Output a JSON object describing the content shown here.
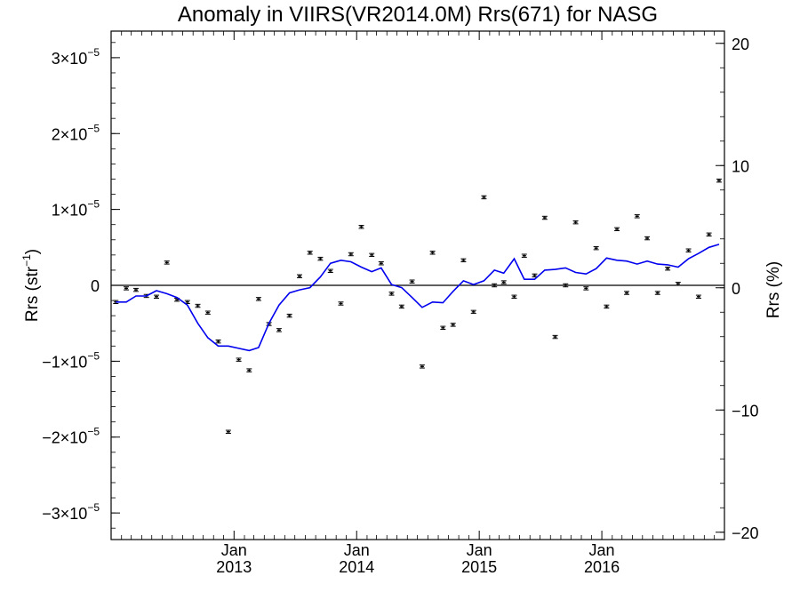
{
  "chart_data": {
    "type": "scatter",
    "title": "Anomaly in VIIRS(VR2014.0M) Rrs(671) for NASG",
    "ylabel_left": {
      "base": "Rrs (str",
      "sup": "−1",
      "close": ")"
    },
    "ylabel_right": "Rrs (%)",
    "xlim": [
      "2012-01-01",
      "2016-12-31"
    ],
    "ylim_left": [
      -3.35e-05,
      3.35e-05
    ],
    "ylim_right": [
      -20.6,
      21.0
    ],
    "left_ticks": [
      {
        "value": -3e-05,
        "mant": "−3×10",
        "exp": "−5"
      },
      {
        "value": -2e-05,
        "mant": "−2×10",
        "exp": "−5"
      },
      {
        "value": -1e-05,
        "mant": "−1×10",
        "exp": "−5"
      },
      {
        "value": 0,
        "mant": "0",
        "exp": ""
      },
      {
        "value": 1e-05,
        "mant": "1×10",
        "exp": "−5"
      },
      {
        "value": 2e-05,
        "mant": "2×10",
        "exp": "−5"
      },
      {
        "value": 3e-05,
        "mant": "3×10",
        "exp": "−5"
      }
    ],
    "right_ticks": [
      {
        "value": -20,
        "label": "−20"
      },
      {
        "value": -10,
        "label": "−10"
      },
      {
        "value": 0,
        "label": "0"
      },
      {
        "value": 10,
        "label": "10"
      },
      {
        "value": 20,
        "label": "20"
      }
    ],
    "x_ticks": [
      {
        "date": "2013-01-01",
        "month": "Jan",
        "year": "2013"
      },
      {
        "date": "2014-01-01",
        "month": "Jan",
        "year": "2014"
      },
      {
        "date": "2015-01-01",
        "month": "Jan",
        "year": "2015"
      },
      {
        "date": "2016-01-01",
        "month": "Jan",
        "year": "2016"
      }
    ],
    "zero_line": 0,
    "points": [
      {
        "x": "2012-01-15",
        "y": -2.2e-06
      },
      {
        "x": "2012-02-15",
        "y": -4e-07
      },
      {
        "x": "2012-03-15",
        "y": -6e-07
      },
      {
        "x": "2012-04-15",
        "y": -1.4e-06
      },
      {
        "x": "2012-05-15",
        "y": -1.5e-06
      },
      {
        "x": "2012-06-15",
        "y": 3e-06
      },
      {
        "x": "2012-07-15",
        "y": -1.9e-06
      },
      {
        "x": "2012-08-15",
        "y": -2.2e-06
      },
      {
        "x": "2012-09-15",
        "y": -2.7e-06
      },
      {
        "x": "2012-10-15",
        "y": -3.6e-06
      },
      {
        "x": "2012-11-15",
        "y": -7.4e-06
      },
      {
        "x": "2012-12-15",
        "y": -1.93e-05
      },
      {
        "x": "2013-01-15",
        "y": -9.8e-06
      },
      {
        "x": "2013-02-15",
        "y": -1.12e-05
      },
      {
        "x": "2013-03-15",
        "y": -1.8e-06
      },
      {
        "x": "2013-04-15",
        "y": -5.1e-06
      },
      {
        "x": "2013-05-15",
        "y": -5.9e-06
      },
      {
        "x": "2013-06-15",
        "y": -4e-06
      },
      {
        "x": "2013-07-15",
        "y": 1.2e-06
      },
      {
        "x": "2013-08-15",
        "y": 4.3e-06
      },
      {
        "x": "2013-09-15",
        "y": 3.5e-06
      },
      {
        "x": "2013-10-15",
        "y": 1.9e-06
      },
      {
        "x": "2013-11-15",
        "y": -2.4e-06
      },
      {
        "x": "2013-12-15",
        "y": 4.1e-06
      },
      {
        "x": "2014-01-15",
        "y": 7.7e-06
      },
      {
        "x": "2014-02-15",
        "y": 4e-06
      },
      {
        "x": "2014-03-15",
        "y": 2.9e-06
      },
      {
        "x": "2014-04-15",
        "y": -1.1e-06
      },
      {
        "x": "2014-05-15",
        "y": -2.8e-06
      },
      {
        "x": "2014-06-15",
        "y": 5e-07
      },
      {
        "x": "2014-07-15",
        "y": -1.07e-05
      },
      {
        "x": "2014-08-15",
        "y": 4.3e-06
      },
      {
        "x": "2014-09-15",
        "y": -5.6e-06
      },
      {
        "x": "2014-10-15",
        "y": -5.2e-06
      },
      {
        "x": "2014-11-15",
        "y": 3.3e-06
      },
      {
        "x": "2014-12-15",
        "y": -3.5e-06
      },
      {
        "x": "2015-01-15",
        "y": 1.16e-05
      },
      {
        "x": "2015-02-15",
        "y": 0.0
      },
      {
        "x": "2015-03-15",
        "y": 4e-07
      },
      {
        "x": "2015-04-15",
        "y": -1.5e-06
      },
      {
        "x": "2015-05-15",
        "y": 3.9e-06
      },
      {
        "x": "2015-06-15",
        "y": 1.3e-06
      },
      {
        "x": "2015-07-15",
        "y": 8.9e-06
      },
      {
        "x": "2015-08-15",
        "y": -6.8e-06
      },
      {
        "x": "2015-09-15",
        "y": 0.0
      },
      {
        "x": "2015-10-15",
        "y": 8.3e-06
      },
      {
        "x": "2015-11-15",
        "y": -4e-07
      },
      {
        "x": "2015-12-15",
        "y": 4.9e-06
      },
      {
        "x": "2016-01-15",
        "y": -2.8e-06
      },
      {
        "x": "2016-02-15",
        "y": 7.4e-06
      },
      {
        "x": "2016-03-15",
        "y": -1e-06
      },
      {
        "x": "2016-04-15",
        "y": 9.1e-06
      },
      {
        "x": "2016-05-15",
        "y": 6.2e-06
      },
      {
        "x": "2016-06-15",
        "y": -1e-06
      },
      {
        "x": "2016-07-15",
        "y": 2.2e-06
      },
      {
        "x": "2016-08-15",
        "y": 2e-07
      },
      {
        "x": "2016-09-15",
        "y": 4.6e-06
      },
      {
        "x": "2016-10-15",
        "y": -1.5e-06
      },
      {
        "x": "2016-11-15",
        "y": 6.7e-06
      },
      {
        "x": "2016-12-15",
        "y": 1.38e-05
      }
    ],
    "error_halfwidth": 2e-07,
    "smooth_line": {
      "color": "#0000ee",
      "points": [
        {
          "x": "2012-01-15",
          "y": -2.2e-06
        },
        {
          "x": "2012-02-15",
          "y": -2.2e-06
        },
        {
          "x": "2012-03-15",
          "y": -1.4e-06
        },
        {
          "x": "2012-04-15",
          "y": -1.4e-06
        },
        {
          "x": "2012-05-15",
          "y": -7e-07
        },
        {
          "x": "2012-06-15",
          "y": -1.1e-06
        },
        {
          "x": "2012-07-15",
          "y": -1.6e-06
        },
        {
          "x": "2012-08-15",
          "y": -2.6e-06
        },
        {
          "x": "2012-09-15",
          "y": -5e-06
        },
        {
          "x": "2012-10-15",
          "y": -6.9e-06
        },
        {
          "x": "2012-11-15",
          "y": -8e-06
        },
        {
          "x": "2012-12-15",
          "y": -8e-06
        },
        {
          "x": "2013-01-15",
          "y": -8.3e-06
        },
        {
          "x": "2013-02-15",
          "y": -8.6e-06
        },
        {
          "x": "2013-03-15",
          "y": -8.2e-06
        },
        {
          "x": "2013-04-15",
          "y": -5e-06
        },
        {
          "x": "2013-05-15",
          "y": -2.6e-06
        },
        {
          "x": "2013-06-15",
          "y": -1e-06
        },
        {
          "x": "2013-07-15",
          "y": -6e-07
        },
        {
          "x": "2013-08-15",
          "y": -3e-07
        },
        {
          "x": "2013-09-15",
          "y": 1.1e-06
        },
        {
          "x": "2013-10-15",
          "y": 2.9e-06
        },
        {
          "x": "2013-11-15",
          "y": 3.3e-06
        },
        {
          "x": "2013-12-15",
          "y": 3.1e-06
        },
        {
          "x": "2014-01-15",
          "y": 2.4e-06
        },
        {
          "x": "2014-02-15",
          "y": 1.8e-06
        },
        {
          "x": "2014-03-15",
          "y": 2.3e-06
        },
        {
          "x": "2014-04-15",
          "y": 1e-07
        },
        {
          "x": "2014-05-15",
          "y": -3e-07
        },
        {
          "x": "2014-06-15",
          "y": -1.6e-06
        },
        {
          "x": "2014-07-15",
          "y": -2.9e-06
        },
        {
          "x": "2014-08-15",
          "y": -2.2e-06
        },
        {
          "x": "2014-09-15",
          "y": -2.3e-06
        },
        {
          "x": "2014-10-15",
          "y": -8e-07
        },
        {
          "x": "2014-11-15",
          "y": 6e-07
        },
        {
          "x": "2014-12-15",
          "y": 1e-07
        },
        {
          "x": "2015-01-15",
          "y": 6e-07
        },
        {
          "x": "2015-02-15",
          "y": 2e-06
        },
        {
          "x": "2015-03-15",
          "y": 1.6e-06
        },
        {
          "x": "2015-04-15",
          "y": 3.5e-06
        },
        {
          "x": "2015-05-15",
          "y": 8e-07
        },
        {
          "x": "2015-06-15",
          "y": 8e-07
        },
        {
          "x": "2015-07-15",
          "y": 2e-06
        },
        {
          "x": "2015-08-15",
          "y": 2.1e-06
        },
        {
          "x": "2015-09-15",
          "y": 2.3e-06
        },
        {
          "x": "2015-10-15",
          "y": 1.7e-06
        },
        {
          "x": "2015-11-15",
          "y": 1.5e-06
        },
        {
          "x": "2015-12-15",
          "y": 2.2e-06
        },
        {
          "x": "2016-01-15",
          "y": 3.6e-06
        },
        {
          "x": "2016-02-15",
          "y": 3.3e-06
        },
        {
          "x": "2016-03-15",
          "y": 3.2e-06
        },
        {
          "x": "2016-04-15",
          "y": 2.8e-06
        },
        {
          "x": "2016-05-15",
          "y": 3.2e-06
        },
        {
          "x": "2016-06-15",
          "y": 2.8e-06
        },
        {
          "x": "2016-07-15",
          "y": 2.7e-06
        },
        {
          "x": "2016-08-15",
          "y": 2.4e-06
        },
        {
          "x": "2016-09-15",
          "y": 3.5e-06
        },
        {
          "x": "2016-10-15",
          "y": 4.2e-06
        },
        {
          "x": "2016-11-15",
          "y": 5e-06
        },
        {
          "x": "2016-12-15",
          "y": 5.4e-06
        }
      ]
    },
    "grid": false,
    "legend": "none"
  }
}
